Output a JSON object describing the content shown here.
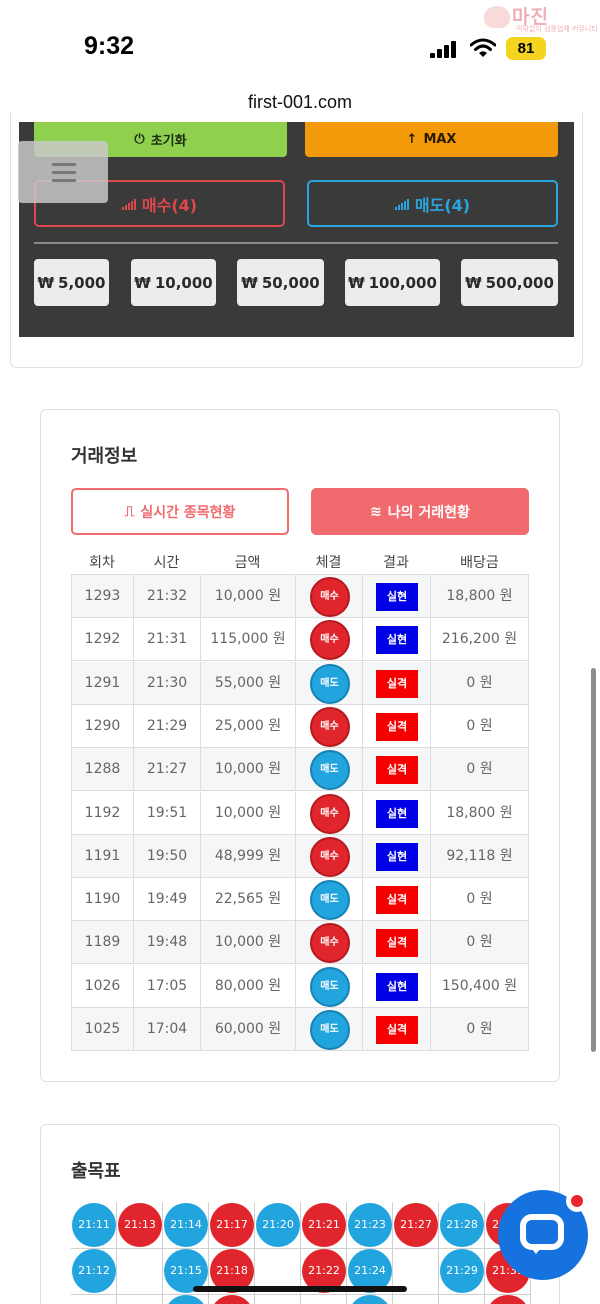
{
  "status": {
    "time": "9:32",
    "battery": "81",
    "watermark_title": "마진",
    "watermark_sub": "먹튀없이 검증업체 커뮤니티"
  },
  "browser": {
    "url": "first-001.com"
  },
  "controls": {
    "reset_label": "초기화",
    "max_label": "MAX",
    "buy_label": "매수(4)",
    "sell_label": "매도(4)",
    "currency": "₩",
    "amounts": [
      "5,000",
      "10,000",
      "50,000",
      "100,000",
      "500,000"
    ]
  },
  "trade_info": {
    "title": "거래정보",
    "tab_live": "실시간 종목현황",
    "tab_mine": "나의 거래현황",
    "columns": [
      "회차",
      "시간",
      "금액",
      "체결",
      "결과",
      "배당금"
    ],
    "rows": [
      {
        "round": "1293",
        "time": "21:32",
        "amount": "10,000 원",
        "side": "매수",
        "side_type": "buy",
        "result": "실현",
        "result_type": "win",
        "payout": "18,800 원"
      },
      {
        "round": "1292",
        "time": "21:31",
        "amount": "115,000 원",
        "side": "매수",
        "side_type": "buy",
        "result": "실현",
        "result_type": "win",
        "payout": "216,200 원"
      },
      {
        "round": "1291",
        "time": "21:30",
        "amount": "55,000 원",
        "side": "매도",
        "side_type": "sell",
        "result": "실격",
        "result_type": "lose",
        "payout": "0 원"
      },
      {
        "round": "1290",
        "time": "21:29",
        "amount": "25,000 원",
        "side": "매수",
        "side_type": "buy",
        "result": "실격",
        "result_type": "lose",
        "payout": "0 원"
      },
      {
        "round": "1288",
        "time": "21:27",
        "amount": "10,000 원",
        "side": "매도",
        "side_type": "sell",
        "result": "실격",
        "result_type": "lose",
        "payout": "0 원"
      },
      {
        "round": "1192",
        "time": "19:51",
        "amount": "10,000 원",
        "side": "매수",
        "side_type": "buy",
        "result": "실현",
        "result_type": "win",
        "payout": "18,800 원"
      },
      {
        "round": "1191",
        "time": "19:50",
        "amount": "48,999 원",
        "side": "매수",
        "side_type": "buy",
        "result": "실현",
        "result_type": "win",
        "payout": "92,118 원"
      },
      {
        "round": "1190",
        "time": "19:49",
        "amount": "22,565 원",
        "side": "매도",
        "side_type": "sell",
        "result": "실격",
        "result_type": "lose",
        "payout": "0 원"
      },
      {
        "round": "1189",
        "time": "19:48",
        "amount": "10,000 원",
        "side": "매수",
        "side_type": "buy",
        "result": "실격",
        "result_type": "lose",
        "payout": "0 원"
      },
      {
        "round": "1026",
        "time": "17:05",
        "amount": "80,000 원",
        "side": "매도",
        "side_type": "sell",
        "result": "실현",
        "result_type": "win",
        "payout": "150,400 원"
      },
      {
        "round": "1025",
        "time": "17:04",
        "amount": "60,000 원",
        "side": "매도",
        "side_type": "sell",
        "result": "실격",
        "result_type": "lose",
        "payout": "0 원"
      }
    ]
  },
  "history": {
    "title": "출목표",
    "row1": [
      {
        "label": "21:11",
        "color": "blue"
      },
      {
        "label": "21:13",
        "color": "red"
      },
      {
        "label": "21:14",
        "color": "blue"
      },
      {
        "label": "21:17",
        "color": "red"
      },
      {
        "label": "21:20",
        "color": "blue"
      },
      {
        "label": "21:21",
        "color": "red"
      },
      {
        "label": "21:23",
        "color": "blue"
      },
      {
        "label": "21:27",
        "color": "red"
      },
      {
        "label": "21:28",
        "color": "blue"
      },
      {
        "label": "21:30",
        "color": "red"
      }
    ],
    "row2": [
      {
        "col": 0,
        "label": "21:12",
        "color": "blue"
      },
      {
        "col": 2,
        "label": "21:15",
        "color": "blue"
      },
      {
        "col": 3,
        "label": "21:18",
        "color": "red"
      },
      {
        "col": 5,
        "label": "21:22",
        "color": "red"
      },
      {
        "col": 6,
        "label": "21:24",
        "color": "blue"
      },
      {
        "col": 8,
        "label": "21:29",
        "color": "blue"
      },
      {
        "col": 9,
        "label": "21:31",
        "color": "red"
      }
    ],
    "row3": [
      {
        "col": 2,
        "label": "",
        "color": "blue"
      },
      {
        "col": 3,
        "label": "",
        "color": "red"
      },
      {
        "col": 6,
        "label": "",
        "color": "blue"
      },
      {
        "col": 9,
        "label": "",
        "color": "red"
      }
    ]
  },
  "colors": {
    "buy": "#e0262c",
    "sell": "#22a4de",
    "win": "#0000e6",
    "lose": "#f40000",
    "accent": "#f06a6e"
  }
}
